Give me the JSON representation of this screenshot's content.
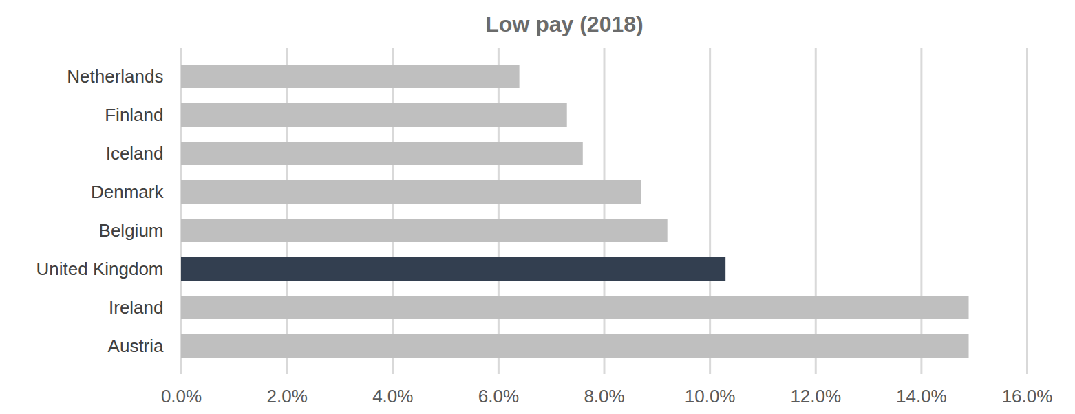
{
  "chart_data": {
    "type": "bar",
    "orientation": "horizontal",
    "title": "Low pay (2018)",
    "categories": [
      "Netherlands",
      "Finland",
      "Iceland",
      "Denmark",
      "Belgium",
      "United Kingdom",
      "Ireland",
      "Austria"
    ],
    "values": [
      6.4,
      7.3,
      7.6,
      8.7,
      9.2,
      10.3,
      14.9,
      14.9
    ],
    "colors": [
      "#bfbfbf",
      "#bfbfbf",
      "#bfbfbf",
      "#bfbfbf",
      "#bfbfbf",
      "#333f50",
      "#bfbfbf",
      "#bfbfbf"
    ],
    "xlim": [
      0,
      16
    ],
    "xticks": [
      {
        "value": 0,
        "label": "0.0%"
      },
      {
        "value": 2,
        "label": "2.0%"
      },
      {
        "value": 4,
        "label": "4.0%"
      },
      {
        "value": 6,
        "label": "6.0%"
      },
      {
        "value": 8,
        "label": "8.0%"
      },
      {
        "value": 10,
        "label": "10.0%"
      },
      {
        "value": 12,
        "label": "12.0%"
      },
      {
        "value": 14,
        "label": "14.0%"
      },
      {
        "value": 16,
        "label": "16.0%"
      }
    ],
    "grid": true
  }
}
